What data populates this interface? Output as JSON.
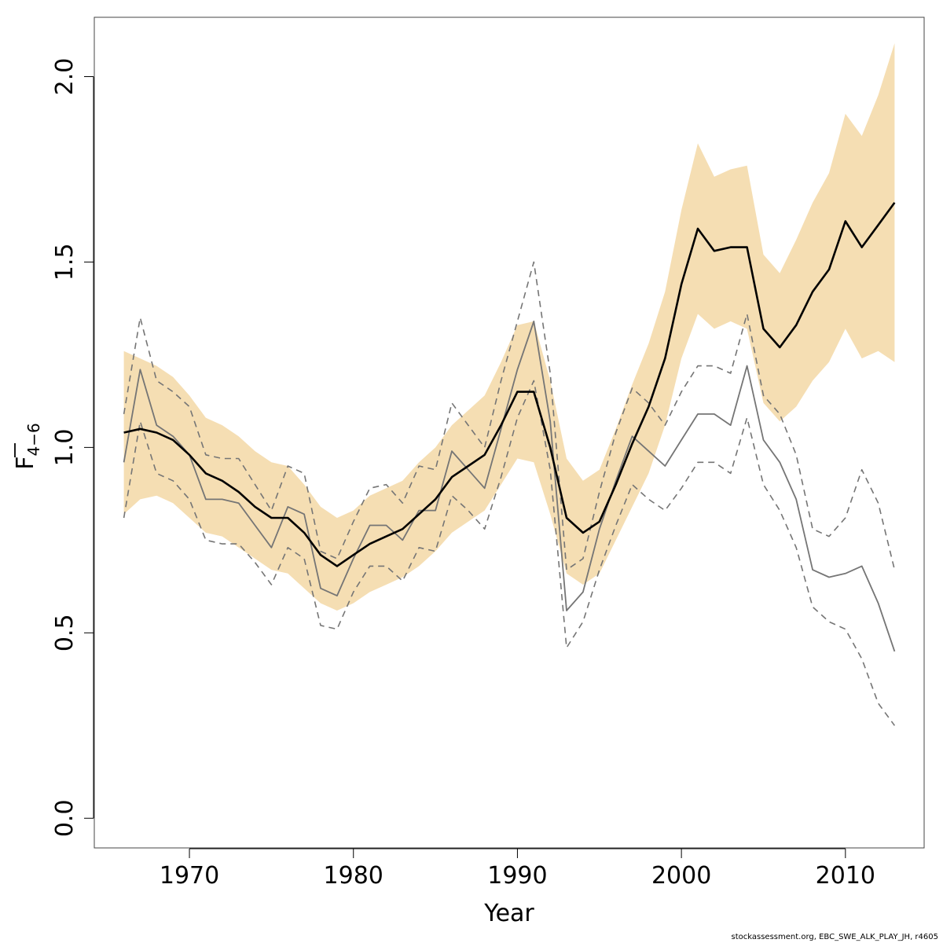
{
  "chart_data": {
    "type": "line",
    "xlabel": "Year",
    "ylabel": {
      "base": "F",
      "subscript": "4−6"
    },
    "xlim": [
      1964.2,
      2014.8
    ],
    "ylim": [
      -0.08,
      2.16
    ],
    "xticks": [
      1970,
      1980,
      1990,
      2000,
      2010
    ],
    "yticks": [
      "0.0",
      "0.5",
      "1.0",
      "1.5",
      "2.0"
    ],
    "grid": false,
    "legend": "none",
    "colors": {
      "band": "#f5deb3",
      "estimate": "#000000",
      "retro": "#757575",
      "retro_ci": "#757575"
    },
    "years": [
      1966,
      1967,
      1968,
      1969,
      1970,
      1971,
      1972,
      1973,
      1974,
      1975,
      1976,
      1977,
      1978,
      1979,
      1980,
      1981,
      1982,
      1983,
      1984,
      1985,
      1986,
      1987,
      1988,
      1989,
      1990,
      1991,
      1992,
      1993,
      1994,
      1995,
      1996,
      1997,
      1998,
      1999,
      2000,
      2001,
      2002,
      2003,
      2004,
      2005,
      2006,
      2007,
      2008,
      2009,
      2010,
      2011,
      2012,
      2013
    ],
    "series": [
      {
        "role": "estimate",
        "values": [
          1.04,
          1.05,
          1.04,
          1.02,
          0.98,
          0.93,
          0.91,
          0.88,
          0.84,
          0.81,
          0.81,
          0.77,
          0.71,
          0.68,
          0.71,
          0.74,
          0.76,
          0.78,
          0.82,
          0.86,
          0.92,
          0.95,
          0.98,
          1.06,
          1.15,
          1.15,
          1.0,
          0.81,
          0.77,
          0.8,
          0.9,
          1.01,
          1.11,
          1.24,
          1.44,
          1.59,
          1.53,
          1.54,
          1.54,
          1.32,
          1.27,
          1.33,
          1.42,
          1.48,
          1.61,
          1.54,
          1.6,
          1.66
        ]
      },
      {
        "role": "ci_upper",
        "values": [
          1.26,
          1.24,
          1.22,
          1.19,
          1.14,
          1.08,
          1.06,
          1.03,
          0.99,
          0.96,
          0.95,
          0.9,
          0.84,
          0.81,
          0.83,
          0.87,
          0.89,
          0.91,
          0.96,
          1.0,
          1.06,
          1.1,
          1.14,
          1.23,
          1.33,
          1.34,
          1.18,
          0.97,
          0.91,
          0.94,
          1.05,
          1.17,
          1.28,
          1.42,
          1.64,
          1.82,
          1.73,
          1.75,
          1.76,
          1.52,
          1.47,
          1.56,
          1.66,
          1.74,
          1.9,
          1.84,
          1.95,
          2.09
        ]
      },
      {
        "role": "ci_lower",
        "values": [
          0.82,
          0.86,
          0.87,
          0.85,
          0.81,
          0.77,
          0.76,
          0.73,
          0.7,
          0.67,
          0.66,
          0.62,
          0.58,
          0.56,
          0.58,
          0.61,
          0.63,
          0.65,
          0.68,
          0.72,
          0.77,
          0.8,
          0.83,
          0.9,
          0.97,
          0.96,
          0.82,
          0.66,
          0.63,
          0.66,
          0.75,
          0.84,
          0.93,
          1.06,
          1.24,
          1.36,
          1.32,
          1.34,
          1.32,
          1.12,
          1.07,
          1.11,
          1.18,
          1.23,
          1.32,
          1.24,
          1.26,
          1.23
        ]
      },
      {
        "role": "retro",
        "values": [
          0.96,
          1.21,
          1.06,
          1.03,
          0.98,
          0.86,
          0.86,
          0.85,
          0.79,
          0.73,
          0.84,
          0.82,
          0.62,
          0.6,
          0.7,
          0.79,
          0.79,
          0.75,
          0.83,
          0.83,
          0.99,
          0.94,
          0.89,
          1.05,
          1.21,
          1.34,
          1.07,
          0.56,
          0.61,
          0.78,
          0.91,
          1.03,
          0.99,
          0.95,
          1.02,
          1.09,
          1.09,
          1.06,
          1.22,
          1.02,
          0.96,
          0.86,
          0.67,
          0.65,
          0.66,
          0.68,
          0.58,
          0.45
        ]
      },
      {
        "role": "retro_upper",
        "values": [
          1.09,
          1.35,
          1.18,
          1.15,
          1.11,
          0.98,
          0.97,
          0.97,
          0.9,
          0.83,
          0.95,
          0.93,
          0.72,
          0.7,
          0.8,
          0.89,
          0.9,
          0.85,
          0.95,
          0.94,
          1.12,
          1.06,
          1.0,
          1.18,
          1.34,
          1.5,
          1.2,
          0.67,
          0.7,
          0.88,
          1.04,
          1.16,
          1.12,
          1.06,
          1.15,
          1.22,
          1.22,
          1.2,
          1.36,
          1.14,
          1.09,
          0.98,
          0.78,
          0.76,
          0.81,
          0.94,
          0.85,
          0.67
        ]
      },
      {
        "role": "retro_lower",
        "values": [
          0.81,
          1.07,
          0.93,
          0.91,
          0.86,
          0.75,
          0.74,
          0.74,
          0.69,
          0.63,
          0.73,
          0.7,
          0.52,
          0.51,
          0.61,
          0.68,
          0.68,
          0.64,
          0.73,
          0.72,
          0.87,
          0.83,
          0.78,
          0.92,
          1.08,
          1.18,
          0.94,
          0.46,
          0.53,
          0.67,
          0.79,
          0.9,
          0.86,
          0.83,
          0.89,
          0.96,
          0.96,
          0.93,
          1.08,
          0.9,
          0.83,
          0.73,
          0.57,
          0.53,
          0.51,
          0.43,
          0.31,
          0.25
        ]
      }
    ]
  },
  "footer": {
    "credit": "stockassessment.org, EBC_SWE_ALK_PLAY_JH, r4605"
  }
}
